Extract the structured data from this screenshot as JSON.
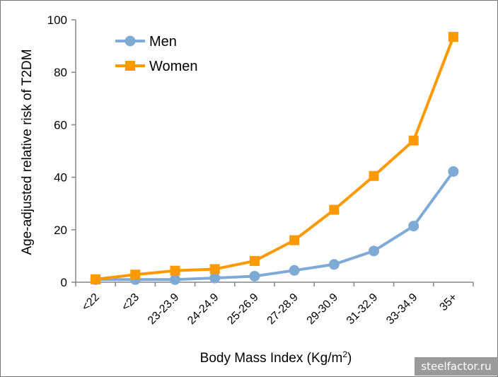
{
  "chart_data": {
    "type": "line",
    "categories": [
      "<22",
      "<23",
      "23-23.9",
      "24-24.9",
      "25-26.9",
      "27-28.9",
      "29-30.9",
      "31-32.9",
      "33-34.9",
      "35+"
    ],
    "series": [
      {
        "name": "Men",
        "color": "#7faad6",
        "marker": "circle",
        "values": [
          1.0,
          1.0,
          1.0,
          1.6,
          2.3,
          4.5,
          6.8,
          11.9,
          21.4,
          42.2
        ]
      },
      {
        "name": "Women",
        "color": "#ff9900",
        "marker": "square",
        "values": [
          1.1,
          2.9,
          4.4,
          5.0,
          8.1,
          16.0,
          27.6,
          40.5,
          54.0,
          93.5
        ]
      }
    ],
    "xlabel": "Body Mass Index (Kg/m",
    "xlabel_sup": "2",
    "xlabel_end": ")",
    "ylabel": "Age-adjusted relative risk of T2DM",
    "ylim": [
      0,
      100
    ],
    "yticks": [
      0,
      20,
      40,
      60,
      80,
      100
    ],
    "grid": false,
    "legend": "top-left"
  },
  "watermark": "steelfactor.ru"
}
